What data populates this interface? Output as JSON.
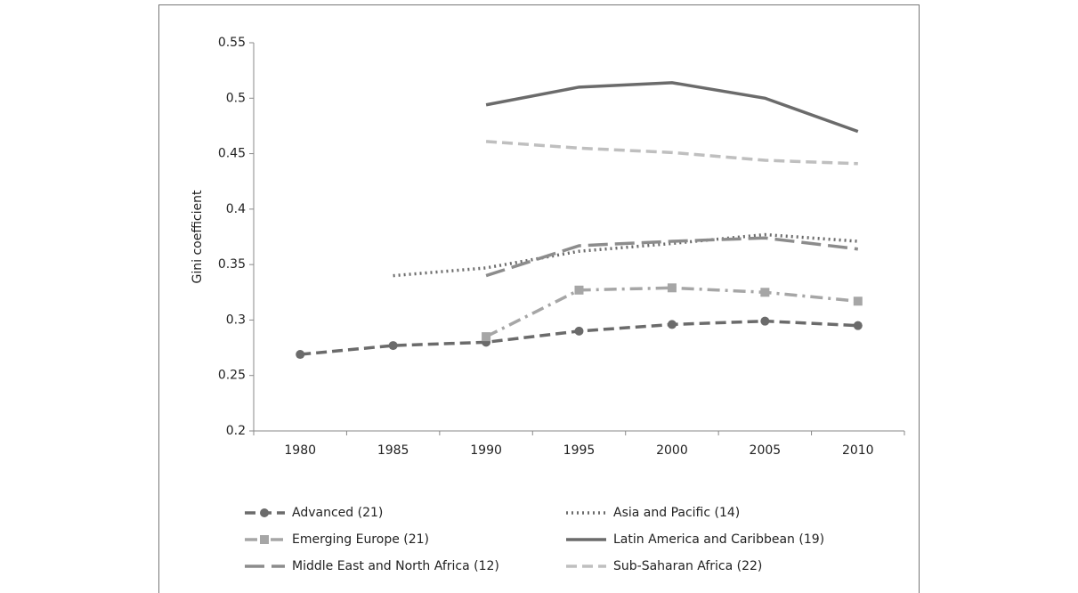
{
  "chart_data": {
    "type": "line",
    "y_label": "Gini coefficient",
    "categories": [
      "1980",
      "1985",
      "1990",
      "1995",
      "2000",
      "2005",
      "2010"
    ],
    "ylim": [
      0.2,
      0.55
    ],
    "yticks": [
      0.2,
      0.25,
      0.3,
      0.35,
      0.4,
      0.45,
      0.5,
      0.55
    ],
    "series": [
      {
        "name": "Advanced (21)",
        "color": "#6b6b6b",
        "line_style": "dashed",
        "marker": "circle",
        "values": [
          0.269,
          0.277,
          0.28,
          0.29,
          0.296,
          0.299,
          0.295
        ]
      },
      {
        "name": "Asia and Pacific (14)",
        "color": "#6b6b6b",
        "line_style": "dotted",
        "marker": "none",
        "values": [
          null,
          0.34,
          0.347,
          0.362,
          0.369,
          0.377,
          0.371
        ]
      },
      {
        "name": "Emerging Europe (21)",
        "color": "#a6a6a6",
        "line_style": "dash-dot",
        "marker": "square",
        "values": [
          null,
          null,
          0.285,
          0.327,
          0.329,
          0.325,
          0.317
        ]
      },
      {
        "name": "Latin America and Caribbean (19)",
        "color": "#6b6b6b",
        "line_style": "solid",
        "marker": "none",
        "values": [
          null,
          null,
          0.494,
          0.51,
          0.514,
          0.5,
          0.47
        ]
      },
      {
        "name": "Middle East and North Africa (12)",
        "color": "#8c8c8c",
        "line_style": "long-dash",
        "marker": "none",
        "values": [
          null,
          null,
          0.34,
          0.367,
          0.371,
          0.374,
          0.364
        ]
      },
      {
        "name": "Sub-Saharan Africa (22)",
        "color": "#bfbfbf",
        "line_style": "dashed",
        "marker": "none",
        "values": [
          null,
          null,
          0.461,
          0.455,
          0.451,
          0.444,
          0.441
        ]
      }
    ]
  }
}
